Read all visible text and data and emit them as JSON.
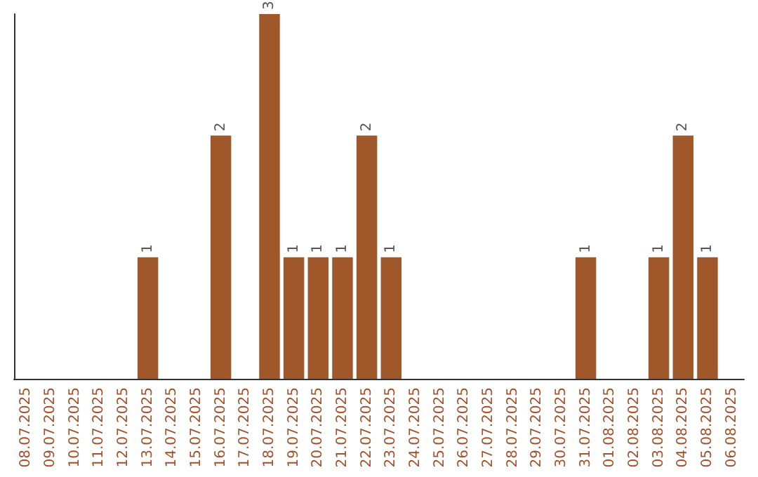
{
  "chart_data": {
    "type": "bar",
    "categories": [
      "08.07.2025",
      "09.07.2025",
      "10.07.2025",
      "11.07.2025",
      "12.07.2025",
      "13.07.2025",
      "14.07.2025",
      "15.07.2025",
      "16.07.2025",
      "17.07.2025",
      "18.07.2025",
      "19.07.2025",
      "20.07.2025",
      "21.07.2025",
      "22.07.2025",
      "23.07.2025",
      "24.07.2025",
      "25.07.2025",
      "26.07.2025",
      "27.07.2025",
      "28.07.2025",
      "29.07.2025",
      "30.07.2025",
      "31.07.2025",
      "01.08.2025",
      "02.08.2025",
      "03.08.2025",
      "04.08.2025",
      "05.08.2025",
      "06.08.2025"
    ],
    "values": [
      0,
      0,
      0,
      0,
      0,
      1,
      0,
      0,
      2,
      0,
      3,
      1,
      1,
      1,
      2,
      1,
      0,
      0,
      0,
      0,
      0,
      0,
      0,
      1,
      0,
      0,
      1,
      2,
      1,
      0
    ],
    "value_labels": [
      null,
      null,
      null,
      null,
      null,
      "1",
      null,
      null,
      "2",
      null,
      "3",
      "1",
      "1",
      "1",
      "2",
      "1",
      null,
      null,
      null,
      null,
      null,
      null,
      null,
      "1",
      null,
      null,
      "1",
      "2",
      "1",
      null
    ],
    "color": "#a0572a",
    "ylim": [
      0,
      3
    ],
    "tick_labels": "x"
  }
}
